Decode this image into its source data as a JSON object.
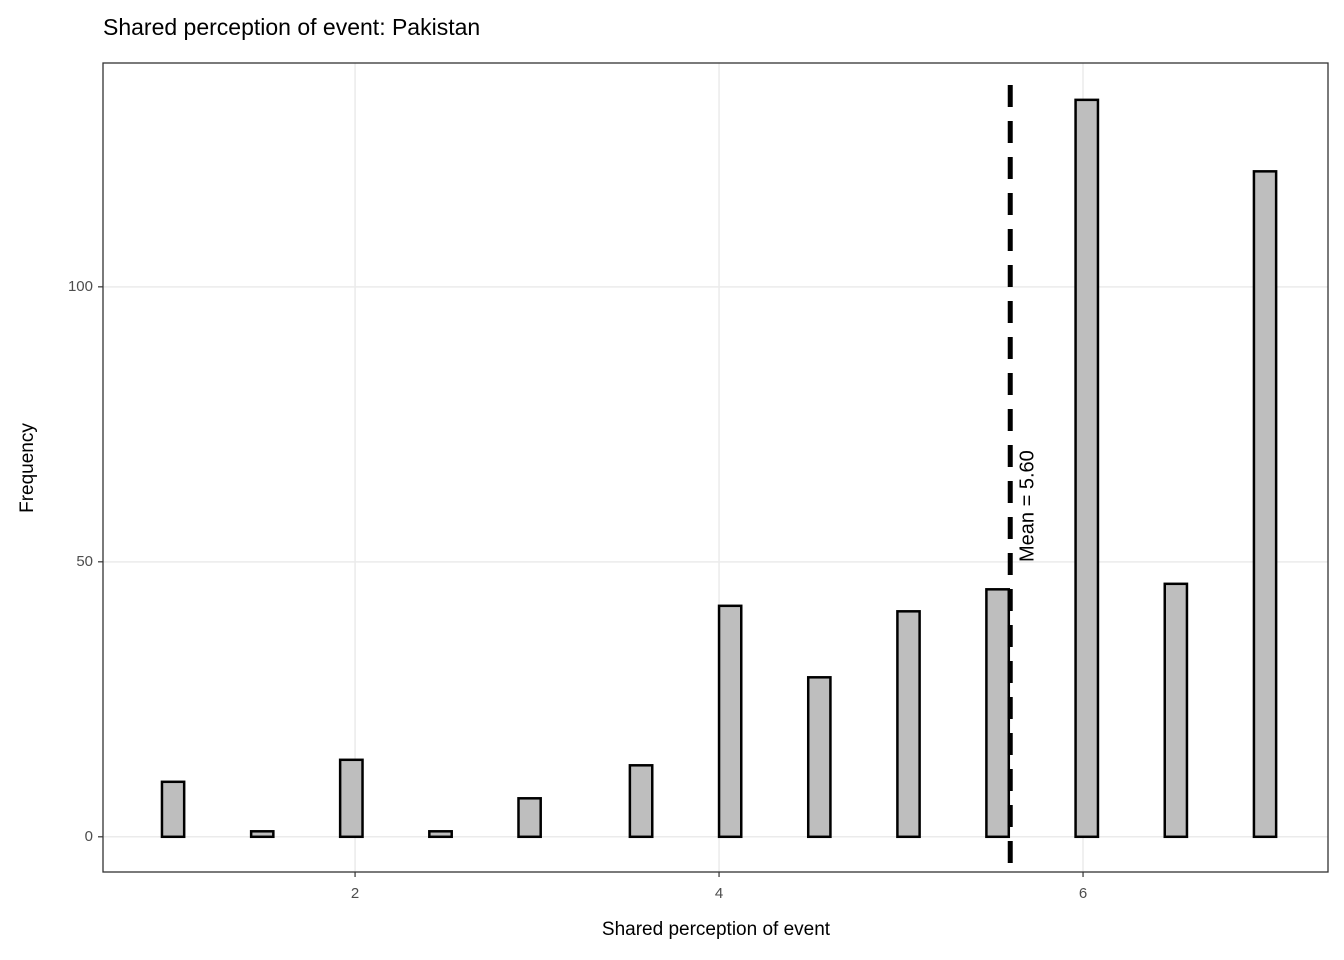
{
  "chart_data": {
    "type": "histogram",
    "title": "Shared perception of event: Pakistan",
    "x_label": "Shared perception of event",
    "y_label": "Frequency",
    "bins": [
      0.939,
      1.061,
      1.184,
      1.306,
      1.429,
      1.551,
      1.673,
      1.796,
      1.918,
      2.041,
      2.163,
      2.286,
      2.408,
      2.531,
      2.653,
      2.776,
      2.898,
      3.02,
      3.143,
      3.265,
      3.388,
      3.51,
      3.633,
      3.755,
      3.878,
      4.0,
      4.122,
      4.245,
      4.367,
      4.49,
      4.612,
      4.735,
      4.857,
      4.98,
      5.102,
      5.224,
      5.347,
      5.469,
      5.592,
      5.714,
      5.837,
      5.959,
      6.082,
      6.204,
      6.327,
      6.449,
      6.571,
      6.694,
      6.816,
      6.939,
      7.061
    ],
    "values": [
      10,
      0,
      0,
      0,
      1,
      0,
      0,
      0,
      14,
      0,
      0,
      0,
      1,
      0,
      0,
      0,
      7,
      0,
      0,
      0,
      0,
      13,
      0,
      0,
      0,
      42,
      0,
      0,
      0,
      29,
      0,
      0,
      0,
      41,
      0,
      0,
      0,
      45,
      0,
      0,
      0,
      134,
      0,
      0,
      0,
      46,
      0,
      0,
      0,
      121
    ],
    "color": "#bebebe",
    "mean": 5.6,
    "mean_label": "Mean = 5.60",
    "xlim": [
      0.615,
      7.346
    ],
    "xticks": [
      2,
      4,
      6
    ],
    "ylim": [
      -6.4,
      140.7
    ],
    "yticks": [
      0,
      50,
      100
    ],
    "grid": true
  }
}
